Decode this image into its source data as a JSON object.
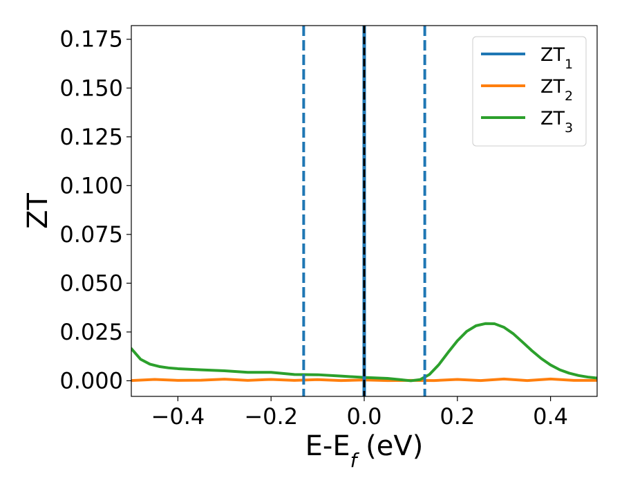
{
  "chart_data": {
    "type": "line",
    "title": "",
    "xlabel": "E-E",
    "xlabel_sub": "f",
    "xlabel_unit": " (eV)",
    "ylabel": "ZT",
    "xlim": [
      -0.5,
      0.5
    ],
    "ylim": [
      -0.008,
      0.182
    ],
    "xticks": [
      -0.4,
      -0.2,
      0.0,
      0.2,
      0.4
    ],
    "xtick_labels": [
      "−0.4",
      "−0.2",
      "0.0",
      "0.2",
      "0.4"
    ],
    "yticks": [
      0.0,
      0.025,
      0.05,
      0.075,
      0.1,
      0.125,
      0.15,
      0.175
    ],
    "ytick_labels": [
      "0.000",
      "0.025",
      "0.050",
      "0.075",
      "0.100",
      "0.125",
      "0.150",
      "0.175"
    ],
    "grid": false,
    "legend_position": "top-right",
    "series": [
      {
        "name": "ZT",
        "name_sub": "1",
        "color": "#1f77b4",
        "x": [],
        "y": []
      },
      {
        "name": "ZT",
        "name_sub": "2",
        "color": "#ff7f0e",
        "x": [
          -0.5,
          -0.45,
          -0.4,
          -0.35,
          -0.3,
          -0.25,
          -0.2,
          -0.15,
          -0.1,
          -0.05,
          0.0,
          0.05,
          0.1,
          0.15,
          0.2,
          0.25,
          0.3,
          0.35,
          0.4,
          0.45,
          0.5
        ],
        "y": [
          0.0001,
          0.0007,
          0.0002,
          0.0003,
          0.0008,
          0.0002,
          0.0007,
          0.0002,
          0.0006,
          0.0001,
          0.0004,
          0.0001,
          0.0002,
          0.0001,
          0.0007,
          0.0001,
          0.0009,
          0.0001,
          0.0009,
          0.0002,
          0.0002
        ]
      },
      {
        "name": "ZT",
        "name_sub": "3",
        "color": "#2ca02c",
        "x": [
          -0.5,
          -0.48,
          -0.46,
          -0.44,
          -0.42,
          -0.4,
          -0.35,
          -0.3,
          -0.25,
          -0.2,
          -0.15,
          -0.1,
          -0.05,
          0.0,
          0.05,
          0.08,
          0.1,
          0.12,
          0.14,
          0.16,
          0.18,
          0.2,
          0.22,
          0.24,
          0.26,
          0.28,
          0.3,
          0.32,
          0.34,
          0.36,
          0.38,
          0.4,
          0.42,
          0.44,
          0.46,
          0.48,
          0.5
        ],
        "y": [
          0.0165,
          0.011,
          0.0085,
          0.0073,
          0.0066,
          0.0062,
          0.0056,
          0.0051,
          0.0043,
          0.0043,
          0.0032,
          0.0031,
          0.0024,
          0.0017,
          0.0012,
          0.0005,
          0.0,
          0.0006,
          0.0032,
          0.0082,
          0.0145,
          0.0205,
          0.0253,
          0.0282,
          0.0293,
          0.0292,
          0.0274,
          0.0241,
          0.0198,
          0.0154,
          0.0114,
          0.0081,
          0.0056,
          0.0039,
          0.0027,
          0.0019,
          0.0014
        ]
      }
    ],
    "vlines": [
      {
        "x": -0.13,
        "style": "dashed",
        "color": "#1f77b4"
      },
      {
        "x": 0.13,
        "style": "dashed",
        "color": "#1f77b4"
      },
      {
        "x": 0.0,
        "style": "solid",
        "color": "#1f77b4"
      },
      {
        "x": 0.0,
        "style": "dashed",
        "color": "#000000"
      }
    ]
  }
}
